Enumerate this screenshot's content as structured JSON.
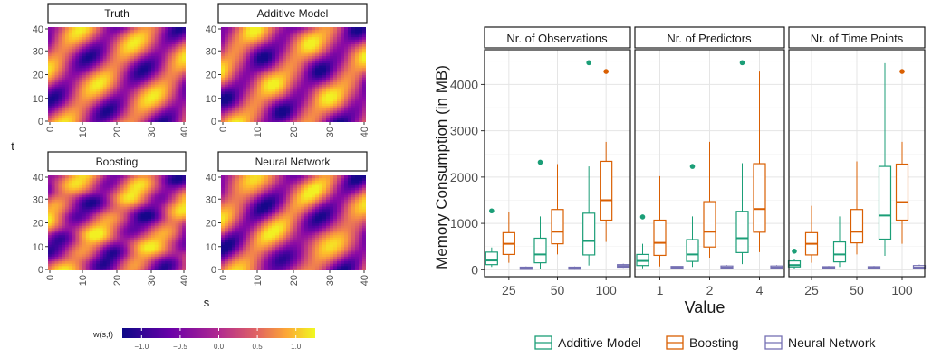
{
  "colors": {
    "additive": "#1B9E77",
    "boosting": "#D95F02",
    "neural": "#7570B3",
    "strip_bg": "#FFFFFF",
    "grid": "#EBEBEB",
    "heat_low": "#0D0887",
    "heat_mid": "#CC4778",
    "heat_high": "#F0F921"
  },
  "chart_data": [
    {
      "type": "heatmap",
      "facets": [
        "Truth",
        "Additive Model",
        "Boosting",
        "Neural Network"
      ],
      "xlabel": "s",
      "ylabel": "t",
      "xlim": [
        0,
        40
      ],
      "ylim": [
        0,
        40
      ],
      "x_ticks": [
        "0",
        "10",
        "20",
        "30",
        "40"
      ],
      "y_ticks": [
        "0",
        "10",
        "20",
        "30",
        "40"
      ],
      "legend": {
        "title": "w(s,t)",
        "ticks": [
          "−1.0",
          "−0.5",
          "0.0",
          "0.5",
          "1.0"
        ],
        "tick_values": [
          -1.0,
          -0.5,
          0.0,
          0.5,
          1.0
        ],
        "range": [
          -1.25,
          1.25
        ],
        "placement": "bottom"
      }
    },
    {
      "type": "box",
      "ylabel": "Memory Consumption (in MB)",
      "xlabel": "Value",
      "ylim": [
        -150,
        4750
      ],
      "y_ticks": [
        0,
        1000,
        2000,
        3000,
        4000
      ],
      "grid": true,
      "legend": {
        "placement": "bottom"
      },
      "series": [
        {
          "name": "Additive Model",
          "color_key": "additive"
        },
        {
          "name": "Boosting",
          "color_key": "boosting"
        },
        {
          "name": "Neural Network",
          "color_key": "neural"
        }
      ],
      "panels": [
        {
          "title": "Nr. of Observations",
          "categories": [
            "25",
            "50",
            "100"
          ],
          "groups": [
            [
              {
                "q1": 110,
                "median": 200,
                "q3": 380,
                "lo": 60,
                "hi": 480,
                "outliers": [
                  1270
                ]
              },
              {
                "q1": 330,
                "median": 560,
                "q3": 800,
                "lo": 150,
                "hi": 1250,
                "outliers": []
              },
              {
                "q1": 8,
                "median": 30,
                "q3": 55,
                "lo": 0,
                "hi": 70,
                "outliers": []
              }
            ],
            [
              {
                "q1": 150,
                "median": 330,
                "q3": 680,
                "lo": 20,
                "hi": 1150,
                "outliers": [
                  2320
                ]
              },
              {
                "q1": 560,
                "median": 820,
                "q3": 1300,
                "lo": 330,
                "hi": 2280,
                "outliers": []
              },
              {
                "q1": 10,
                "median": 30,
                "q3": 55,
                "lo": 0,
                "hi": 70,
                "outliers": []
              }
            ],
            [
              {
                "q1": 320,
                "median": 620,
                "q3": 1220,
                "lo": 90,
                "hi": 2230,
                "outliers": [
                  4470
                ]
              },
              {
                "q1": 1070,
                "median": 1500,
                "q3": 2340,
                "lo": 600,
                "hi": 2760,
                "outliers": [
                  4280
                ]
              },
              {
                "q1": 55,
                "median": 80,
                "q3": 110,
                "lo": 40,
                "hi": 130,
                "outliers": []
              }
            ]
          ]
        },
        {
          "title": "Nr. of Predictors",
          "categories": [
            "1",
            "2",
            "4"
          ],
          "groups": [
            [
              {
                "q1": 90,
                "median": 190,
                "q3": 330,
                "lo": 30,
                "hi": 560,
                "outliers": [
                  1140
                ]
              },
              {
                "q1": 310,
                "median": 580,
                "q3": 1070,
                "lo": 70,
                "hi": 2020,
                "outliers": []
              },
              {
                "q1": 25,
                "median": 45,
                "q3": 70,
                "lo": 10,
                "hi": 90,
                "outliers": []
              }
            ],
            [
              {
                "q1": 180,
                "median": 330,
                "q3": 650,
                "lo": 60,
                "hi": 1150,
                "outliers": [
                  2230
                ]
              },
              {
                "q1": 490,
                "median": 820,
                "q3": 1470,
                "lo": 260,
                "hi": 2760,
                "outliers": []
              },
              {
                "q1": 25,
                "median": 45,
                "q3": 80,
                "lo": 10,
                "hi": 100,
                "outliers": []
              }
            ],
            [
              {
                "q1": 370,
                "median": 680,
                "q3": 1260,
                "lo": 120,
                "hi": 2300,
                "outliers": [
                  4470
                ]
              },
              {
                "q1": 810,
                "median": 1310,
                "q3": 2290,
                "lo": 380,
                "hi": 4280,
                "outliers": []
              },
              {
                "q1": 25,
                "median": 45,
                "q3": 80,
                "lo": 10,
                "hi": 100,
                "outliers": []
              }
            ]
          ]
        },
        {
          "title": "Nr. of Time Points",
          "categories": [
            "25",
            "50",
            "100"
          ],
          "groups": [
            [
              {
                "q1": 60,
                "median": 100,
                "q3": 190,
                "lo": 20,
                "hi": 230,
                "outliers": [
                  400
                ]
              },
              {
                "q1": 320,
                "median": 560,
                "q3": 800,
                "lo": 150,
                "hi": 1380,
                "outliers": []
              },
              {
                "q1": 20,
                "median": 40,
                "q3": 65,
                "lo": 5,
                "hi": 80,
                "outliers": []
              }
            ],
            [
              {
                "q1": 170,
                "median": 330,
                "q3": 600,
                "lo": 60,
                "hi": 1150,
                "outliers": []
              },
              {
                "q1": 580,
                "median": 820,
                "q3": 1300,
                "lo": 330,
                "hi": 2340,
                "outliers": []
              },
              {
                "q1": 20,
                "median": 40,
                "q3": 65,
                "lo": 5,
                "hi": 80,
                "outliers": []
              }
            ],
            [
              {
                "q1": 660,
                "median": 1170,
                "q3": 2230,
                "lo": 300,
                "hi": 4460,
                "outliers": []
              },
              {
                "q1": 1070,
                "median": 1460,
                "q3": 2280,
                "lo": 560,
                "hi": 2760,
                "outliers": [
                  4280
                ]
              },
              {
                "q1": 25,
                "median": 45,
                "q3": 90,
                "lo": 10,
                "hi": 110,
                "outliers": []
              }
            ]
          ]
        }
      ]
    }
  ]
}
